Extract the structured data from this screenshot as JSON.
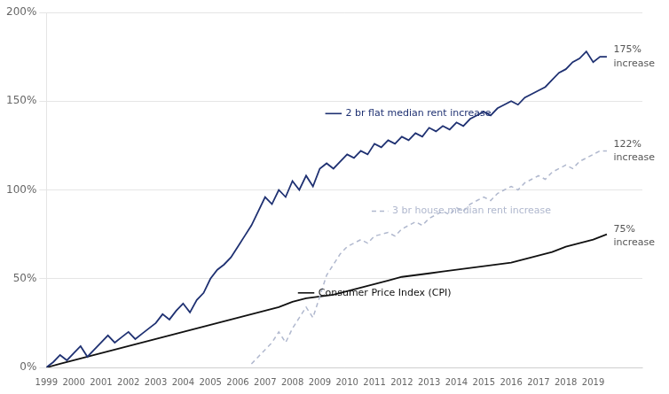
{
  "chart_data": {
    "type": "line",
    "xlim": [
      1999,
      2020.8
    ],
    "xticks": [
      1999,
      2000,
      2001,
      2002,
      2003,
      2004,
      2005,
      2006,
      2007,
      2008,
      2009,
      2010,
      2011,
      2012,
      2013,
      2014,
      2015,
      2016,
      2017,
      2018,
      2019
    ],
    "ylim": [
      0,
      200
    ],
    "yticks": [
      {
        "value": 0,
        "label": "0%"
      },
      {
        "value": 50,
        "label": "50%"
      },
      {
        "value": 100,
        "label": "100%"
      },
      {
        "value": 150,
        "label": "150%"
      },
      {
        "value": 200,
        "label": "200%"
      }
    ],
    "grid": "y",
    "series": [
      {
        "color": "#1f3172",
        "line_style": "solid",
        "x": [
          1999.0,
          1999.25,
          1999.5,
          1999.75,
          2000.0,
          2000.25,
          2000.5,
          2000.75,
          2001.0,
          2001.25,
          2001.5,
          2001.75,
          2002.0,
          2002.25,
          2002.5,
          2002.75,
          2003.0,
          2003.25,
          2003.5,
          2003.75,
          2004.0,
          2004.25,
          2004.5,
          2004.75,
          2005.0,
          2005.25,
          2005.5,
          2005.75,
          2006.0,
          2006.25,
          2006.5,
          2006.75,
          2007.0,
          2007.25,
          2007.5,
          2007.75,
          2008.0,
          2008.25,
          2008.5,
          2008.75,
          2009.0,
          2009.25,
          2009.5,
          2009.75,
          2010.0,
          2010.25,
          2010.5,
          2010.75,
          2011.0,
          2011.25,
          2011.5,
          2011.75,
          2012.0,
          2012.25,
          2012.5,
          2012.75,
          2013.0,
          2013.25,
          2013.5,
          2013.75,
          2014.0,
          2014.25,
          2014.5,
          2014.75,
          2015.0,
          2015.25,
          2015.5,
          2015.75,
          2016.0,
          2016.25,
          2016.5,
          2016.75,
          2017.0,
          2017.25,
          2017.5,
          2017.75,
          2018.0,
          2018.25,
          2018.5,
          2018.75,
          2019.0,
          2019.25,
          2019.5
        ],
        "values": [
          0,
          3,
          7,
          4,
          8,
          12,
          6,
          10,
          14,
          18,
          14,
          17,
          20,
          16,
          19,
          22,
          25,
          30,
          27,
          32,
          36,
          31,
          38,
          42,
          50,
          55,
          58,
          62,
          68,
          74,
          80,
          88,
          96,
          92,
          100,
          96,
          105,
          100,
          108,
          102,
          112,
          115,
          112,
          116,
          120,
          118,
          122,
          120,
          126,
          124,
          128,
          126,
          130,
          128,
          132,
          130,
          135,
          133,
          136,
          134,
          138,
          136,
          140,
          142,
          144,
          142,
          146,
          148,
          150,
          148,
          152,
          154,
          156,
          158,
          162,
          166,
          168,
          172,
          174,
          178,
          172,
          175,
          175
        ]
      },
      {
        "color": "#b0b8ce",
        "line_style": "dashed",
        "x": [
          2006.5,
          2006.75,
          2007.0,
          2007.25,
          2007.5,
          2007.75,
          2008.0,
          2008.25,
          2008.5,
          2008.75,
          2009.0,
          2009.25,
          2009.5,
          2009.75,
          2010.0,
          2010.25,
          2010.5,
          2010.75,
          2011.0,
          2011.25,
          2011.5,
          2011.75,
          2012.0,
          2012.25,
          2012.5,
          2012.75,
          2013.0,
          2013.25,
          2013.5,
          2013.75,
          2014.0,
          2014.25,
          2014.5,
          2014.75,
          2015.0,
          2015.25,
          2015.5,
          2015.75,
          2016.0,
          2016.25,
          2016.5,
          2016.75,
          2017.0,
          2017.25,
          2017.5,
          2017.75,
          2018.0,
          2018.25,
          2018.5,
          2018.75,
          2019.0,
          2019.25,
          2019.5
        ],
        "values": [
          2,
          6,
          10,
          14,
          20,
          14,
          22,
          28,
          34,
          28,
          40,
          52,
          58,
          64,
          68,
          70,
          72,
          70,
          74,
          75,
          76,
          74,
          78,
          80,
          82,
          80,
          84,
          86,
          88,
          86,
          90,
          88,
          92,
          94,
          96,
          94,
          98,
          100,
          102,
          100,
          104,
          106,
          108,
          106,
          110,
          112,
          114,
          112,
          116,
          118,
          120,
          122,
          122
        ]
      },
      {
        "color": "#111111",
        "line_style": "solid",
        "x": [
          1999.0,
          1999.5,
          2000.0,
          2000.5,
          2001.0,
          2001.5,
          2002.0,
          2002.5,
          2003.0,
          2003.5,
          2004.0,
          2004.5,
          2005.0,
          2005.5,
          2006.0,
          2006.5,
          2007.0,
          2007.5,
          2008.0,
          2008.5,
          2009.0,
          2009.5,
          2010.0,
          2010.5,
          2011.0,
          2011.5,
          2012.0,
          2012.5,
          2013.0,
          2013.5,
          2014.0,
          2014.5,
          2015.0,
          2015.5,
          2016.0,
          2016.5,
          2017.0,
          2017.5,
          2018.0,
          2018.5,
          2019.0,
          2019.5
        ],
        "values": [
          0,
          2,
          4,
          6,
          8,
          10,
          12,
          14,
          16,
          18,
          20,
          22,
          24,
          26,
          28,
          30,
          32,
          34,
          37,
          39,
          40,
          41,
          43,
          45,
          47,
          49,
          51,
          52,
          53,
          54,
          55,
          56,
          57,
          58,
          59,
          61,
          63,
          65,
          68,
          70,
          72,
          75
        ]
      }
    ],
    "annotations": [
      {
        "text": "2 br flat median rent increase",
        "x": 2009.8,
        "y": 143,
        "color": "#1f3172",
        "line_style": "solid"
      },
      {
        "text": "3 br house median rent increase",
        "x": 2011.5,
        "y": 88,
        "color": "#b0b8ce",
        "line_style": "dashed"
      },
      {
        "text": "Consumer Price Index (CPI)",
        "x": 2008.8,
        "y": 42,
        "color": "#111111",
        "line_style": "solid"
      },
      {
        "text": "175%\nincrease",
        "x": 2019.65,
        "y": 175,
        "color": "#555555"
      },
      {
        "text": "122%\nincrease",
        "x": 2019.65,
        "y": 122,
        "color": "#555555"
      },
      {
        "text": "75%\nincrease",
        "x": 2019.65,
        "y": 74,
        "color": "#555555"
      }
    ]
  }
}
